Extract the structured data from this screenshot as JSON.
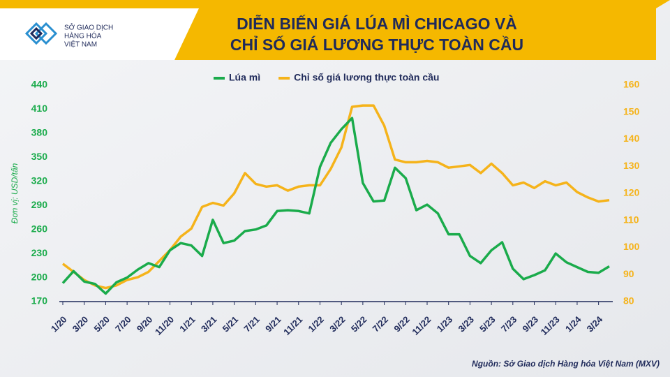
{
  "logo": [
    "SỞ GIAO DỊCH",
    "HÀNG HÓA",
    "VIỆT NAM"
  ],
  "chart_data": {
    "type": "line",
    "title": [
      "DIỄN BIẾN GIÁ LÚA MÌ CHICAGO VÀ",
      "CHỈ SỐ GIÁ LƯƠNG THỰC TOÀN CẦU"
    ],
    "y_label": "Đơn vị: USD/tấn",
    "source": "Nguồn: Sở Giao dịch Hàng hóa Việt Nam (MXV)",
    "categories": [
      "1/20",
      null,
      "3/20",
      null,
      "5/20",
      null,
      "7/20",
      null,
      "9/20",
      null,
      "11/20",
      null,
      "1/21",
      null,
      "3/21",
      null,
      "5/21",
      null,
      "7/21",
      null,
      "9/21",
      null,
      "11/21",
      null,
      "1/22",
      null,
      "3/22",
      null,
      "5/22",
      null,
      "7/22",
      null,
      "9/22",
      null,
      "11/22",
      null,
      "1/23",
      null,
      "3/23",
      null,
      "5/23",
      null,
      "7/23",
      null,
      "9/23",
      null,
      "11/23",
      null,
      "1/24",
      null,
      "3/24",
      null
    ],
    "series": [
      {
        "name": "Lúa mì",
        "color": "#1aab4b",
        "values": [
          193,
          208,
          195,
          192,
          180,
          194,
          200,
          210,
          218,
          213,
          234,
          243,
          240,
          227,
          272,
          243,
          246,
          258,
          260,
          265,
          283,
          284,
          283,
          280,
          338,
          368,
          385,
          399,
          318,
          295,
          296,
          337,
          324,
          284,
          291,
          280,
          254,
          254,
          227,
          218,
          234,
          244,
          211,
          198,
          203,
          209,
          230,
          219,
          213,
          207,
          206,
          214
        ]
      },
      {
        "name": "Chỉ số giá lương thực toàn cầu",
        "color": "#f5b31a",
        "axis": "y2",
        "values": [
          94,
          91,
          88,
          86,
          85,
          86,
          88,
          89,
          91,
          95,
          99,
          104,
          107,
          115,
          116.5,
          115.5,
          120,
          127.5,
          123.5,
          122.5,
          123,
          121,
          122.5,
          123,
          123,
          129,
          137,
          152,
          152.5,
          152.5,
          145,
          132.5,
          131.5,
          131.5,
          132,
          131.5,
          129.5,
          130,
          130.5,
          127.5,
          131,
          127.5,
          123,
          124,
          122,
          124.5,
          123,
          124,
          120.5,
          118.5,
          117,
          117.5
        ]
      }
    ],
    "ylim": [
      170,
      440
    ],
    "yticks": [
      170,
      200,
      230,
      260,
      290,
      320,
      350,
      380,
      410,
      440
    ],
    "y2lim": [
      80,
      160
    ],
    "y2ticks": [
      80,
      90,
      100,
      110,
      120,
      130,
      140,
      150,
      160
    ],
    "legend": "top"
  }
}
